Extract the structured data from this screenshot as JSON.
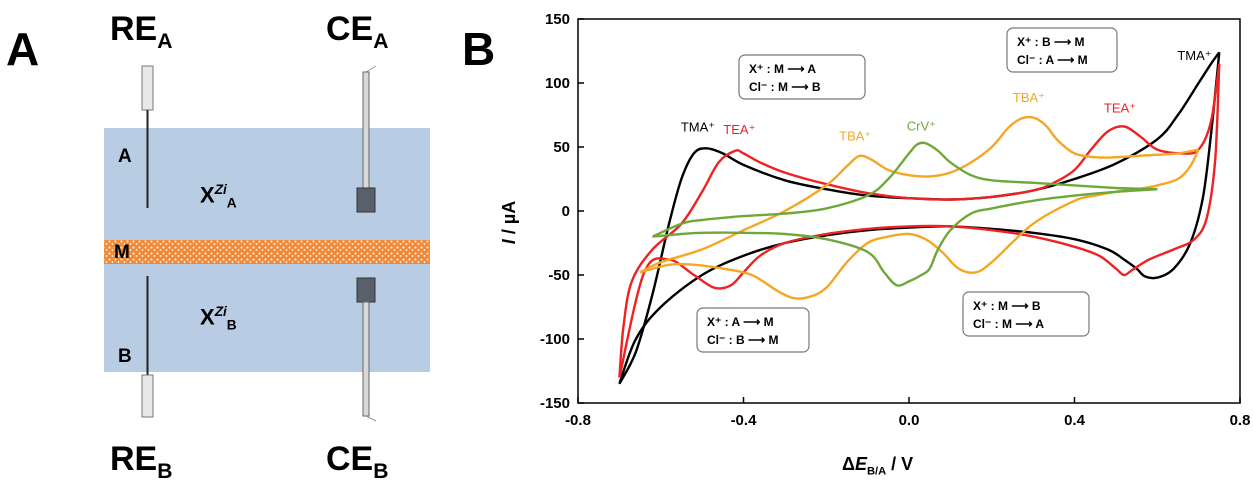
{
  "panel_a": {
    "letter": "A",
    "re_a": {
      "main": "RE",
      "sub": "A"
    },
    "ce_a": {
      "main": "CE",
      "sub": "A"
    },
    "re_b": {
      "main": "RE",
      "sub": "B"
    },
    "ce_b": {
      "main": "CE",
      "sub": "B"
    },
    "phase_a_label": "A",
    "phase_b_label": "B",
    "membrane_label": "M",
    "x_a": {
      "main": "X",
      "sup": "Zi",
      "sub": "A"
    },
    "x_b": {
      "main": "X",
      "sup": "Zi",
      "sub": "B"
    },
    "colors": {
      "solution": "#b8cde3",
      "membrane": "#f08a3a",
      "electrode": "#595f6b"
    }
  },
  "panel_b": {
    "letter": "B",
    "legend_boxes": [
      {
        "line1": "X⁺ : M ⟶ A",
        "line2": "Cl⁻ : M ⟶ B"
      },
      {
        "line1": "X⁺ : B ⟶ M",
        "line2": "Cl⁻ : A ⟶ M"
      },
      {
        "line1": "X⁺ : A ⟶ M",
        "line2": "Cl⁻ : B ⟶ M"
      },
      {
        "line1": "X⁺ : M ⟶ B",
        "line2": "Cl⁻ : M ⟶ A"
      }
    ]
  },
  "chart_data": {
    "type": "line",
    "title": "",
    "xlabel": "ΔE_B/A / V",
    "xlabel_parts": {
      "delta": "Δ",
      "e": "E",
      "sub": "B/A",
      "unit": " / V"
    },
    "ylabel": "I / µA",
    "ylabel_parts": {
      "i": "I",
      "unit": " / µA"
    },
    "xlim": [
      -0.8,
      0.8
    ],
    "ylim": [
      -150,
      150
    ],
    "xticks": [
      -0.8,
      -0.4,
      0.0,
      0.4,
      0.8
    ],
    "xtick_labels": [
      "-0.8",
      "-0.4",
      "0.0",
      "0.4",
      "0.8"
    ],
    "yticks": [
      -150,
      -100,
      -50,
      0,
      50,
      100,
      150
    ],
    "ytick_labels": [
      "-150",
      "-100",
      "-50",
      "0",
      "50",
      "100",
      "150"
    ],
    "grid": false,
    "series": [
      {
        "name": "TMA⁺",
        "color": "#000000",
        "forward_x": [
          -0.7,
          -0.66,
          -0.62,
          -0.58,
          -0.55,
          -0.52,
          -0.49,
          -0.45,
          -0.4,
          -0.3,
          -0.2,
          -0.1,
          0.0,
          0.1,
          0.2,
          0.3,
          0.4,
          0.5,
          0.6,
          0.65,
          0.7,
          0.73,
          0.75
        ],
        "forward_y": [
          -135,
          -110,
          -65,
          -10,
          25,
          45,
          49,
          45,
          36,
          24,
          17,
          12,
          10,
          9,
          11,
          16,
          25,
          37,
          56,
          75,
          100,
          115,
          124
        ],
        "backward_x": [
          0.75,
          0.73,
          0.71,
          0.68,
          0.64,
          0.6,
          0.57,
          0.55,
          0.52,
          0.48,
          0.4,
          0.3,
          0.2,
          0.1,
          0.0,
          -0.1,
          -0.2,
          -0.3,
          -0.4,
          -0.5,
          -0.6,
          -0.66,
          -0.7
        ],
        "backward_y": [
          124,
          60,
          10,
          -25,
          -45,
          -52,
          -51,
          -45,
          -38,
          -30,
          -22,
          -17,
          -14,
          -12,
          -13,
          -15,
          -19,
          -25,
          -35,
          -50,
          -75,
          -100,
          -135
        ],
        "label": "TMA⁺",
        "label_pos": [
          -0.51,
          62
        ],
        "label2": "TMA⁺",
        "label2_pos": [
          0.69,
          118
        ]
      },
      {
        "name": "TEA⁺",
        "color": "#ee2222",
        "forward_x": [
          -0.7,
          -0.69,
          -0.67,
          -0.62,
          -0.55,
          -0.5,
          -0.46,
          -0.42,
          -0.4,
          -0.36,
          -0.3,
          -0.2,
          -0.1,
          0.0,
          0.1,
          0.2,
          0.3,
          0.35,
          0.4,
          0.44,
          0.48,
          0.52,
          0.56,
          0.6,
          0.66,
          0.7,
          0.73,
          0.75
        ],
        "forward_y": [
          -130,
          -90,
          -55,
          -30,
          -10,
          15,
          38,
          47,
          45,
          38,
          30,
          21,
          14,
          10,
          9,
          11,
          16,
          22,
          32,
          48,
          62,
          66,
          58,
          48,
          45,
          48,
          70,
          115
        ],
        "backward_x": [
          0.75,
          0.74,
          0.72,
          0.69,
          0.64,
          0.58,
          0.54,
          0.52,
          0.5,
          0.46,
          0.4,
          0.3,
          0.2,
          0.1,
          0.0,
          -0.1,
          -0.2,
          -0.3,
          -0.36,
          -0.4,
          -0.43,
          -0.47,
          -0.52,
          -0.58,
          -0.64,
          -0.7
        ],
        "backward_y": [
          115,
          40,
          -5,
          -22,
          -30,
          -38,
          -46,
          -50,
          -45,
          -35,
          -28,
          -20,
          -15,
          -12,
          -12,
          -14,
          -18,
          -25,
          -35,
          -48,
          -58,
          -60,
          -50,
          -38,
          -48,
          -130
        ],
        "label": "TEA⁺",
        "label_pos": [
          -0.41,
          60
        ],
        "label2": "TEA⁺",
        "label2_pos": [
          0.51,
          77
        ]
      },
      {
        "name": "TBA⁺",
        "color": "#f5a623",
        "forward_x": [
          -0.65,
          -0.6,
          -0.5,
          -0.4,
          -0.3,
          -0.2,
          -0.15,
          -0.12,
          -0.09,
          -0.05,
          0.0,
          0.05,
          0.1,
          0.15,
          0.2,
          0.24,
          0.27,
          0.3,
          0.33,
          0.36,
          0.4,
          0.45,
          0.5,
          0.55,
          0.6,
          0.65,
          0.7
        ],
        "forward_y": [
          -48,
          -40,
          -30,
          -15,
          0,
          20,
          35,
          43,
          40,
          32,
          28,
          27,
          30,
          38,
          50,
          65,
          72,
          73,
          67,
          55,
          45,
          42,
          42,
          43,
          44,
          45,
          48
        ],
        "backward_x": [
          0.7,
          0.68,
          0.65,
          0.6,
          0.55,
          0.5,
          0.45,
          0.4,
          0.3,
          0.2,
          0.16,
          0.12,
          0.08,
          0.04,
          0.0,
          -0.05,
          -0.1,
          -0.15,
          -0.2,
          -0.24,
          -0.28,
          -0.32,
          -0.38,
          -0.45,
          -0.52,
          -0.58,
          -0.65
        ],
        "backward_y": [
          48,
          35,
          25,
          20,
          17,
          15,
          12,
          8,
          -10,
          -40,
          -48,
          -45,
          -32,
          -22,
          -18,
          -20,
          -25,
          -40,
          -60,
          -67,
          -68,
          -62,
          -50,
          -45,
          -42,
          -42,
          -48
        ],
        "label": "TBA⁺",
        "label_pos": [
          -0.13,
          55
        ],
        "label2": "TBA⁺",
        "label2_pos": [
          0.29,
          85
        ]
      },
      {
        "name": "CrV⁺",
        "color": "#6fa83a",
        "forward_x": [
          -0.62,
          -0.55,
          -0.5,
          -0.4,
          -0.3,
          -0.2,
          -0.1,
          -0.05,
          0.0,
          0.02,
          0.04,
          0.07,
          0.1,
          0.15,
          0.2,
          0.3,
          0.4,
          0.5,
          0.6
        ],
        "forward_y": [
          -20,
          -10,
          -7,
          -4,
          -2,
          2,
          12,
          25,
          45,
          52,
          53,
          47,
          38,
          28,
          24,
          22,
          20,
          18,
          17
        ],
        "backward_x": [
          0.6,
          0.5,
          0.4,
          0.3,
          0.2,
          0.15,
          0.1,
          0.07,
          0.05,
          0.03,
          0.0,
          -0.03,
          -0.06,
          -0.1,
          -0.2,
          -0.3,
          -0.4,
          -0.5,
          -0.55,
          -0.62
        ],
        "backward_y": [
          17,
          15,
          12,
          8,
          2,
          -2,
          -15,
          -30,
          -45,
          -50,
          -55,
          -58,
          -48,
          -32,
          -22,
          -18,
          -17,
          -17,
          -18,
          -20
        ],
        "label": "CrV⁺",
        "label_pos": [
          0.03,
          63
        ]
      }
    ]
  }
}
